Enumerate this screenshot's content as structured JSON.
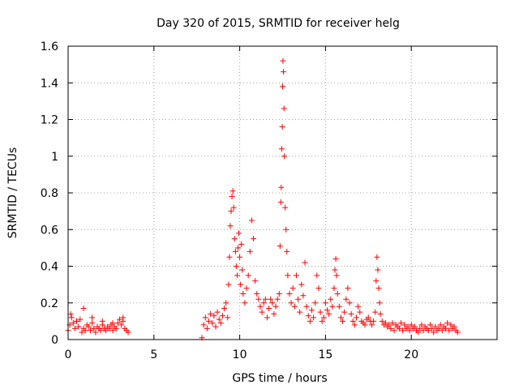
{
  "chart_data": {
    "type": "scatter",
    "title": "Day 320 of 2015, SRMTID for receiver helg",
    "xlabel": "GPS time / hours",
    "ylabel": "SRMTID / TECUs",
    "xlim": [
      0,
      25
    ],
    "ylim": [
      0,
      1.6
    ],
    "xticks": [
      0,
      5,
      10,
      15,
      20
    ],
    "xtick_labels": [
      "0",
      "5",
      "10",
      "15",
      "20"
    ],
    "yticks": [
      0,
      0.2,
      0.4,
      0.6,
      0.8,
      1.0,
      1.2,
      1.4,
      1.6
    ],
    "ytick_labels": [
      "0",
      "0.2",
      "0.4",
      "0.6",
      "0.8",
      "1",
      "1.2",
      "1.4",
      "1.6"
    ],
    "grid": true,
    "marker": "+",
    "color": "#ff0000",
    "series": [
      {
        "name": "SRMTID",
        "x": [
          0.0,
          0.1,
          0.2,
          0.3,
          0.4,
          0.5,
          0.6,
          0.7,
          0.8,
          0.9,
          1.0,
          1.1,
          1.2,
          1.3,
          1.4,
          1.5,
          1.6,
          1.7,
          1.8,
          1.9,
          2.0,
          2.1,
          2.2,
          2.3,
          2.4,
          2.5,
          2.6,
          2.7,
          2.8,
          2.9,
          3.0,
          3.1,
          3.2,
          3.3,
          3.4,
          3.5,
          0.15,
          0.5,
          0.9,
          1.4,
          2.0,
          2.6,
          3.2,
          7.8,
          7.9,
          8.0,
          8.1,
          8.2,
          8.3,
          8.4,
          8.5,
          8.6,
          8.7,
          8.8,
          8.9,
          9.0,
          9.1,
          9.2,
          9.3,
          9.35,
          9.4,
          9.45,
          9.5,
          9.55,
          9.6,
          9.65,
          9.7,
          9.75,
          9.8,
          9.85,
          9.9,
          9.95,
          10.0,
          10.05,
          10.1,
          10.15,
          10.2,
          10.3,
          10.4,
          10.5,
          10.6,
          10.7,
          10.8,
          10.9,
          11.0,
          11.1,
          11.2,
          11.3,
          11.4,
          11.5,
          11.6,
          11.7,
          11.8,
          11.9,
          12.0,
          12.1,
          12.2,
          12.3,
          12.35,
          12.4,
          12.42,
          12.45,
          12.48,
          12.5,
          12.52,
          12.55,
          12.58,
          12.6,
          12.65,
          12.7,
          12.75,
          12.8,
          12.9,
          13.0,
          13.1,
          13.2,
          13.3,
          13.4,
          13.5,
          13.6,
          13.7,
          13.8,
          13.9,
          14.0,
          14.1,
          14.2,
          14.3,
          14.4,
          14.5,
          14.6,
          14.7,
          14.8,
          14.9,
          15.0,
          15.1,
          15.2,
          15.3,
          15.4,
          15.5,
          15.55,
          15.6,
          15.65,
          15.7,
          15.8,
          15.9,
          16.0,
          16.1,
          16.2,
          16.3,
          16.4,
          16.5,
          16.6,
          16.7,
          16.8,
          16.9,
          17.0,
          17.1,
          17.2,
          17.3,
          17.4,
          17.5,
          17.6,
          17.7,
          17.8,
          17.9,
          17.95,
          18.0,
          18.05,
          18.1,
          18.15,
          18.2,
          18.3,
          18.4,
          18.5,
          18.6,
          18.7,
          18.8,
          18.9,
          19.0,
          19.1,
          19.2,
          19.3,
          19.4,
          19.5,
          19.6,
          19.7,
          19.8,
          19.9,
          20.0,
          20.1,
          20.2,
          20.3,
          20.4,
          20.5,
          20.6,
          20.7,
          20.8,
          20.9,
          21.0,
          21.1,
          21.2,
          21.3,
          21.4,
          21.5,
          21.6,
          21.7,
          21.8,
          21.9,
          22.0,
          22.1,
          22.2,
          22.3,
          22.4,
          22.5,
          22.6,
          22.7
        ],
        "y": [
          0.05,
          0.08,
          0.12,
          0.09,
          0.06,
          0.1,
          0.07,
          0.11,
          0.04,
          0.06,
          0.05,
          0.08,
          0.07,
          0.05,
          0.09,
          0.06,
          0.04,
          0.07,
          0.06,
          0.05,
          0.08,
          0.06,
          0.05,
          0.07,
          0.06,
          0.08,
          0.05,
          0.07,
          0.06,
          0.09,
          0.11,
          0.08,
          0.1,
          0.06,
          0.05,
          0.04,
          0.14,
          0.1,
          0.17,
          0.12,
          0.1,
          0.09,
          0.12,
          0.01,
          0.08,
          0.12,
          0.06,
          0.1,
          0.14,
          0.09,
          0.13,
          0.07,
          0.15,
          0.11,
          0.09,
          0.13,
          0.17,
          0.2,
          0.12,
          0.3,
          0.45,
          0.62,
          0.7,
          0.78,
          0.81,
          0.72,
          0.55,
          0.48,
          0.4,
          0.35,
          0.5,
          0.58,
          0.45,
          0.3,
          0.52,
          0.38,
          0.25,
          0.2,
          0.28,
          0.35,
          0.48,
          0.65,
          0.55,
          0.32,
          0.25,
          0.22,
          0.18,
          0.15,
          0.2,
          0.22,
          0.12,
          0.17,
          0.22,
          0.2,
          0.14,
          0.18,
          0.22,
          0.25,
          0.51,
          0.75,
          0.83,
          1.04,
          1.16,
          1.38,
          1.52,
          1.46,
          1.26,
          1.0,
          0.72,
          0.6,
          0.48,
          0.35,
          0.25,
          0.2,
          0.28,
          0.18,
          0.35,
          0.22,
          0.15,
          0.3,
          0.24,
          0.42,
          0.18,
          0.13,
          0.1,
          0.16,
          0.12,
          0.2,
          0.35,
          0.28,
          0.15,
          0.1,
          0.12,
          0.2,
          0.16,
          0.14,
          0.22,
          0.18,
          0.28,
          0.38,
          0.44,
          0.35,
          0.25,
          0.18,
          0.12,
          0.1,
          0.15,
          0.22,
          0.28,
          0.2,
          0.14,
          0.1,
          0.08,
          0.12,
          0.18,
          0.15,
          0.1,
          0.09,
          0.08,
          0.11,
          0.12,
          0.1,
          0.08,
          0.1,
          0.15,
          0.32,
          0.45,
          0.38,
          0.28,
          0.2,
          0.14,
          0.1,
          0.08,
          0.09,
          0.07,
          0.08,
          0.06,
          0.09,
          0.05,
          0.08,
          0.07,
          0.06,
          0.09,
          0.05,
          0.08,
          0.06,
          0.07,
          0.05,
          0.08,
          0.06,
          0.07,
          0.05,
          0.04,
          0.06,
          0.08,
          0.05,
          0.07,
          0.06,
          0.05,
          0.08,
          0.06,
          0.04,
          0.07,
          0.05,
          0.06,
          0.08,
          0.05,
          0.07,
          0.06,
          0.09,
          0.05,
          0.08,
          0.06,
          0.07,
          0.05,
          0.04
        ]
      }
    ]
  }
}
